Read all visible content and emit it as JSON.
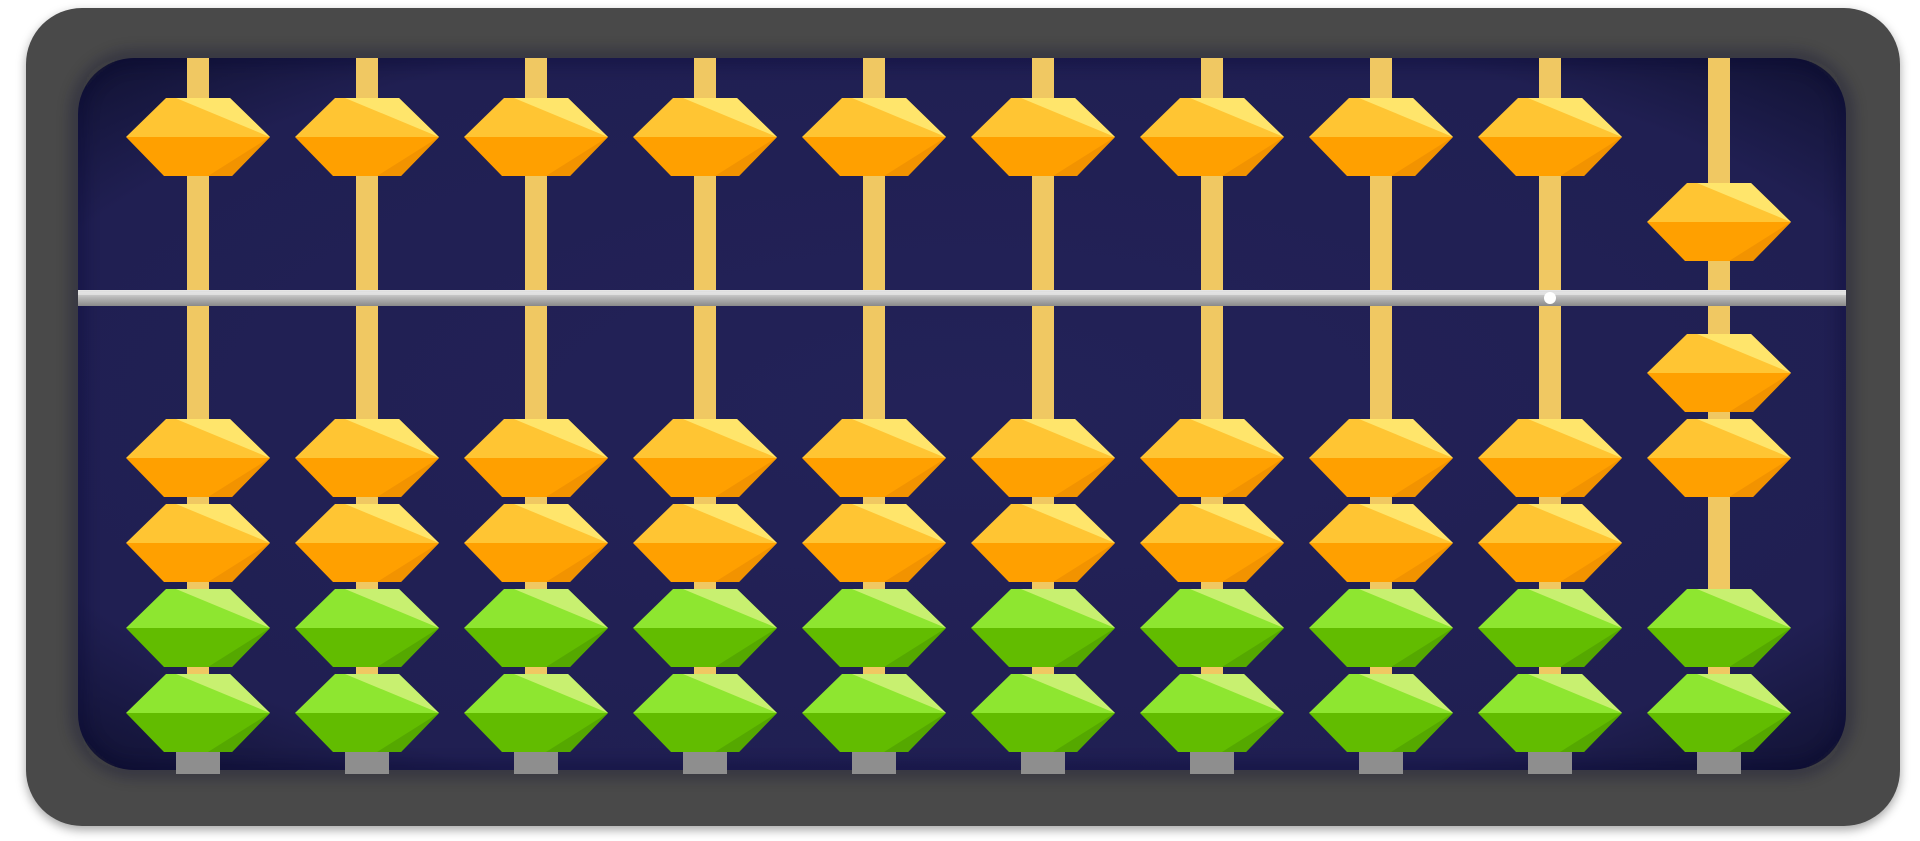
{
  "colors": {
    "page_bg": "#ffffff",
    "frame": "#4a4a4a",
    "frame_inner_shadow": "#3a3a3a",
    "board_dark": "#15173a",
    "board": "#201f52",
    "rod": "#f0c862",
    "rod_foot": "#8e8e8e",
    "beam": "#a6a6a6",
    "beam_highlight": "#e3e3e3",
    "beam_dot": "#ffffff",
    "bead_orange_top": "#ffc533",
    "bead_orange_top_light": "#ffe56b",
    "bead_orange_bottom": "#ffa000",
    "bead_orange_bottom_dark": "#f29300",
    "bead_green_top": "#8ee630",
    "bead_green_top_light": "#c8f070",
    "bead_green_bottom": "#62bc00",
    "bead_green_bottom_dark": "#55a800"
  },
  "abacus": {
    "rod_count": 10,
    "upper_beads_per_rod": 1,
    "lower_beads_per_rod": 4,
    "rod_values": [
      0,
      0,
      0,
      0,
      0,
      0,
      0,
      0,
      0,
      7
    ],
    "lower_bead_colors": [
      "orange",
      "orange",
      "green",
      "green"
    ]
  },
  "beam_dot_rod": 8
}
